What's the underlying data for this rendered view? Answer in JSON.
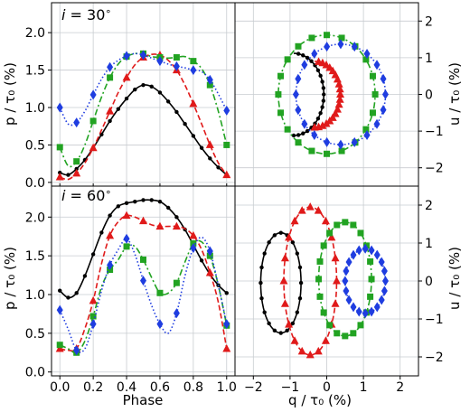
{
  "chart_data": {
    "type": "line",
    "grid": true,
    "series_colors": {
      "black": "#000000",
      "red": "#e01a1a",
      "green": "#22a322",
      "blue": "#1f3de0"
    },
    "series_styles": {
      "black": {
        "dash": "solid",
        "marker": "circle"
      },
      "red": {
        "dash": "dashed",
        "marker": "triangle"
      },
      "green": {
        "dash": "dashdot",
        "marker": "square"
      },
      "blue": {
        "dash": "dotted",
        "marker": "diamond"
      }
    },
    "labels": {
      "x_left": "Phase",
      "x_right": "q / τ₀ (%)",
      "y_left": "p / τ₀ (%)",
      "y_right": "u / τ₀ (%)",
      "row1_title_prefix": "i = ",
      "row1_title_value": "30",
      "row1_title_unit": "∘",
      "row2_title_prefix": "i = ",
      "row2_title_value": "60",
      "row2_title_unit": "∘"
    },
    "ticks": {
      "phase": [
        "0.0",
        "0.2",
        "0.4",
        "0.6",
        "0.8",
        "1.0"
      ],
      "p_top": [
        "0.0",
        "0.5",
        "1.0",
        "1.5",
        "2.0"
      ],
      "p_bottom": [
        "0.0",
        "0.5",
        "1.0",
        "1.5",
        "2.0"
      ],
      "q": [
        "−2",
        "−1",
        "0",
        "1",
        "2"
      ],
      "u_top": [
        "−2",
        "−1",
        "0",
        "1",
        "2"
      ],
      "u_bottom": [
        "−2",
        "−1",
        "0",
        "1",
        "2"
      ]
    },
    "axes": {
      "phase_lim": [
        -0.05,
        1.05
      ],
      "p_lim_top": [
        -0.05,
        2.4
      ],
      "p_lim_bottom": [
        -0.05,
        2.4
      ],
      "q_lim": [
        -2.5,
        2.5
      ],
      "u_lim": [
        -2.5,
        2.5
      ],
      "phase_ticks": [
        0,
        0.2,
        0.4,
        0.6,
        0.8,
        1.0
      ],
      "p_ticks": [
        0,
        0.5,
        1.0,
        1.5,
        2.0
      ],
      "q_ticks": [
        -2,
        -1,
        0,
        1,
        2
      ],
      "u_ticks": [
        -2,
        -1,
        0,
        1,
        2
      ]
    },
    "panels": {
      "top_left": {
        "x": [
          0.0,
          0.05,
          0.1,
          0.15,
          0.2,
          0.25,
          0.3,
          0.35,
          0.4,
          0.45,
          0.5,
          0.55,
          0.6,
          0.65,
          0.7,
          0.75,
          0.8,
          0.85,
          0.9,
          0.95,
          1.0
        ],
        "series": {
          "black": [
            0.13,
            0.1,
            0.18,
            0.3,
            0.46,
            0.64,
            0.82,
            0.98,
            1.12,
            1.24,
            1.3,
            1.28,
            1.2,
            1.08,
            0.94,
            0.78,
            0.62,
            0.46,
            0.32,
            0.2,
            0.1
          ],
          "red": [
            0.07,
            0.04,
            0.12,
            0.26,
            0.46,
            0.7,
            0.95,
            1.2,
            1.4,
            1.57,
            1.67,
            1.71,
            1.7,
            1.63,
            1.5,
            1.3,
            1.05,
            0.78,
            0.5,
            0.26,
            0.1
          ],
          "green": [
            0.47,
            0.22,
            0.28,
            0.5,
            0.82,
            1.14,
            1.4,
            1.58,
            1.68,
            1.72,
            1.72,
            1.68,
            1.67,
            1.66,
            1.67,
            1.68,
            1.62,
            1.52,
            1.3,
            0.95,
            0.5
          ],
          "blue": [
            1.0,
            0.78,
            0.8,
            0.95,
            1.17,
            1.38,
            1.54,
            1.63,
            1.69,
            1.72,
            1.7,
            1.66,
            1.62,
            1.58,
            1.55,
            1.53,
            1.5,
            1.48,
            1.37,
            1.18,
            0.96
          ]
        }
      },
      "bottom_left": {
        "x": [
          0.0,
          0.05,
          0.1,
          0.15,
          0.2,
          0.25,
          0.3,
          0.35,
          0.4,
          0.45,
          0.5,
          0.55,
          0.6,
          0.65,
          0.7,
          0.75,
          0.8,
          0.85,
          0.9,
          0.95,
          1.0
        ],
        "series": {
          "black": [
            1.05,
            0.96,
            1.02,
            1.24,
            1.52,
            1.8,
            2.02,
            2.14,
            2.18,
            2.2,
            2.22,
            2.22,
            2.2,
            2.12,
            2.0,
            1.84,
            1.64,
            1.44,
            1.26,
            1.12,
            1.02
          ],
          "red": [
            0.3,
            0.28,
            0.3,
            0.56,
            0.92,
            1.4,
            1.76,
            1.94,
            2.02,
            2.0,
            1.95,
            1.9,
            1.88,
            1.88,
            1.88,
            1.85,
            1.76,
            1.58,
            1.28,
            0.9,
            0.3
          ],
          "green": [
            0.35,
            0.3,
            0.25,
            0.4,
            0.72,
            1.1,
            1.32,
            1.45,
            1.62,
            1.62,
            1.45,
            1.22,
            1.02,
            1.02,
            1.15,
            1.42,
            1.66,
            1.68,
            1.5,
            1.12,
            0.6
          ],
          "blue": [
            0.8,
            0.55,
            0.28,
            0.3,
            0.62,
            1.05,
            1.38,
            1.58,
            1.72,
            1.52,
            1.18,
            0.86,
            0.62,
            0.5,
            0.76,
            1.24,
            1.6,
            1.74,
            1.56,
            1.12,
            0.62
          ]
        }
      },
      "top_right": {
        "series": {
          "black": {
            "cx": -0.9,
            "cy": 0.0,
            "rx": 0.82,
            "ry": 1.12,
            "t0": -1.5708,
            "t1": 1.5708
          },
          "red": {
            "cx": -0.33,
            "cy": 0.0,
            "rx": 0.7,
            "ry": 0.9,
            "t0": -1.5708,
            "t1": 1.5708
          },
          "green": {
            "cx": 0.0,
            "cy": 0.0,
            "rx": 1.32,
            "ry": 1.62,
            "t0": 0,
            "t1": 6.2832
          },
          "blue": {
            "cx": 0.38,
            "cy": 0.0,
            "rx": 1.22,
            "ry": 1.37,
            "t0": 0,
            "t1": 6.2832
          }
        }
      },
      "bottom_right": {
        "series": {
          "black": {
            "cx": -1.25,
            "cy": -0.05,
            "rx": 0.55,
            "ry": 1.32,
            "t0": 0,
            "t1": 6.2832
          },
          "red": {
            "cx": -0.45,
            "cy": 0.0,
            "rx": 0.72,
            "ry": 1.95,
            "t0": 0,
            "t1": 6.2832
          },
          "green": {
            "cx": 0.5,
            "cy": 0.05,
            "rx": 0.72,
            "ry": 1.5,
            "t0": 0,
            "t1": 6.2832
          },
          "blue": {
            "cx": 1.05,
            "cy": 0.0,
            "rx": 0.55,
            "ry": 0.85,
            "t0": 0,
            "t1": 6.2832
          }
        }
      }
    }
  }
}
